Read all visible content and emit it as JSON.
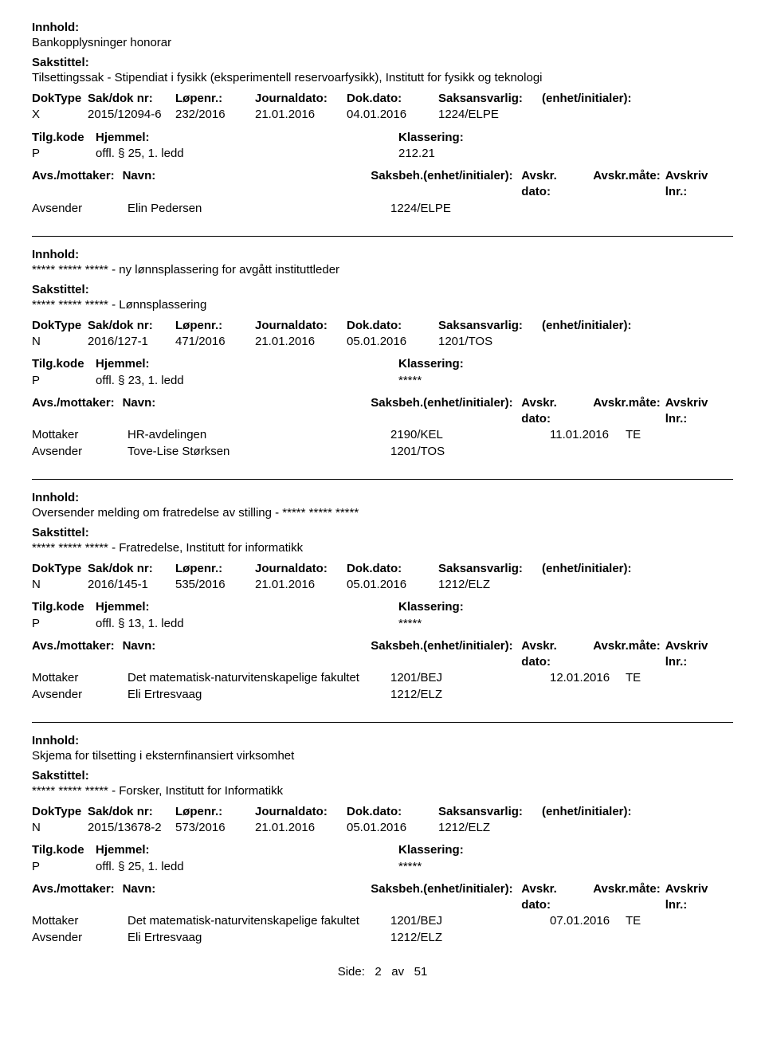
{
  "labels": {
    "innhold": "Innhold:",
    "sakstittel": "Sakstittel:",
    "doktype": "DokType",
    "sakdoknr": "Sak/dok nr:",
    "lopenr": "Løpenr.:",
    "journaldato": "Journaldato:",
    "dokdato": "Dok.dato:",
    "saksansvarlig": "Saksansvarlig:",
    "enhet": "(enhet/initialer):",
    "tilgkode": "Tilg.kode",
    "hjemmel": "Hjemmel:",
    "klassering": "Klassering:",
    "avsmottaker": "Avs./mottaker:",
    "navn": "Navn:",
    "saksbeh": "Saksbeh.",
    "saksbeh_enhet": "(enhet/initialer):",
    "avskrdato": "Avskr. dato:",
    "avskrmate": "Avskr.måte:",
    "avskrivlnr": "Avskriv lnr.:"
  },
  "footer": {
    "prefix": "Side:",
    "page": "2",
    "of": "av",
    "total": "51"
  },
  "records": [
    {
      "innhold": "Bankopplysninger honorar",
      "sakstittel": "Tilsettingssak - Stipendiat i fysikk (eksperimentell reservoarfysikk), Institutt for fysikk og teknologi",
      "doktype": "X",
      "sakdoknr": "2015/12094-6",
      "lopenr": "232/2016",
      "journaldato": "21.01.2016",
      "dokdato": "04.01.2016",
      "saksansvarlig": "1224/ELPE",
      "enhet": "",
      "tilgkode": "P",
      "hjemmel": "offl. § 25, 1. ledd",
      "klassering": "212.21",
      "parties": [
        {
          "role": "Avsender",
          "name": "Elin Pedersen",
          "saksbeh": "1224/ELPE",
          "avskrdato": "",
          "avskrmate": "",
          "avskrivlnr": ""
        }
      ]
    },
    {
      "innhold": "***** ***** ***** - ny lønnsplassering for avgått instituttleder",
      "sakstittel": "***** ***** ***** - Lønnsplassering",
      "doktype": "N",
      "sakdoknr": "2016/127-1",
      "lopenr": "471/2016",
      "journaldato": "21.01.2016",
      "dokdato": "05.01.2016",
      "saksansvarlig": "1201/TOS",
      "enhet": "",
      "tilgkode": "P",
      "hjemmel": "offl. § 23, 1. ledd",
      "klassering": "*****",
      "parties": [
        {
          "role": "Mottaker",
          "name": "HR-avdelingen",
          "saksbeh": "2190/KEL",
          "avskrdato": "11.01.2016",
          "avskrmate": "TE",
          "avskrivlnr": ""
        },
        {
          "role": "Avsender",
          "name": "Tove-Lise Størksen",
          "saksbeh": "1201/TOS",
          "avskrdato": "",
          "avskrmate": "",
          "avskrivlnr": ""
        }
      ]
    },
    {
      "innhold": "Oversender melding om fratredelse av stilling - ***** ***** *****",
      "sakstittel": "***** ***** ***** - Fratredelse, Institutt for informatikk",
      "doktype": "N",
      "sakdoknr": "2016/145-1",
      "lopenr": "535/2016",
      "journaldato": "21.01.2016",
      "dokdato": "05.01.2016",
      "saksansvarlig": "1212/ELZ",
      "enhet": "",
      "tilgkode": "P",
      "hjemmel": "offl. § 13, 1. ledd",
      "klassering": "*****",
      "parties": [
        {
          "role": "Mottaker",
          "name": "Det matematisk-naturvitenskapelige fakultet",
          "saksbeh": "1201/BEJ",
          "avskrdato": "12.01.2016",
          "avskrmate": "TE",
          "avskrivlnr": ""
        },
        {
          "role": "Avsender",
          "name": "Eli Ertresvaag",
          "saksbeh": "1212/ELZ",
          "avskrdato": "",
          "avskrmate": "",
          "avskrivlnr": ""
        }
      ]
    },
    {
      "innhold": "Skjema for tilsetting i eksternfinansiert virksomhet",
      "sakstittel": "***** ***** ***** - Forsker, Institutt for Informatikk",
      "doktype": "N",
      "sakdoknr": "2015/13678-2",
      "lopenr": "573/2016",
      "journaldato": "21.01.2016",
      "dokdato": "05.01.2016",
      "saksansvarlig": "1212/ELZ",
      "enhet": "",
      "tilgkode": "P",
      "hjemmel": "offl. § 25, 1. ledd",
      "klassering": "*****",
      "parties": [
        {
          "role": "Mottaker",
          "name": "Det matematisk-naturvitenskapelige fakultet",
          "saksbeh": "1201/BEJ",
          "avskrdato": "07.01.2016",
          "avskrmate": "TE",
          "avskrivlnr": ""
        },
        {
          "role": "Avsender",
          "name": "Eli Ertresvaag",
          "saksbeh": "1212/ELZ",
          "avskrdato": "",
          "avskrmate": "",
          "avskrivlnr": ""
        }
      ]
    }
  ]
}
